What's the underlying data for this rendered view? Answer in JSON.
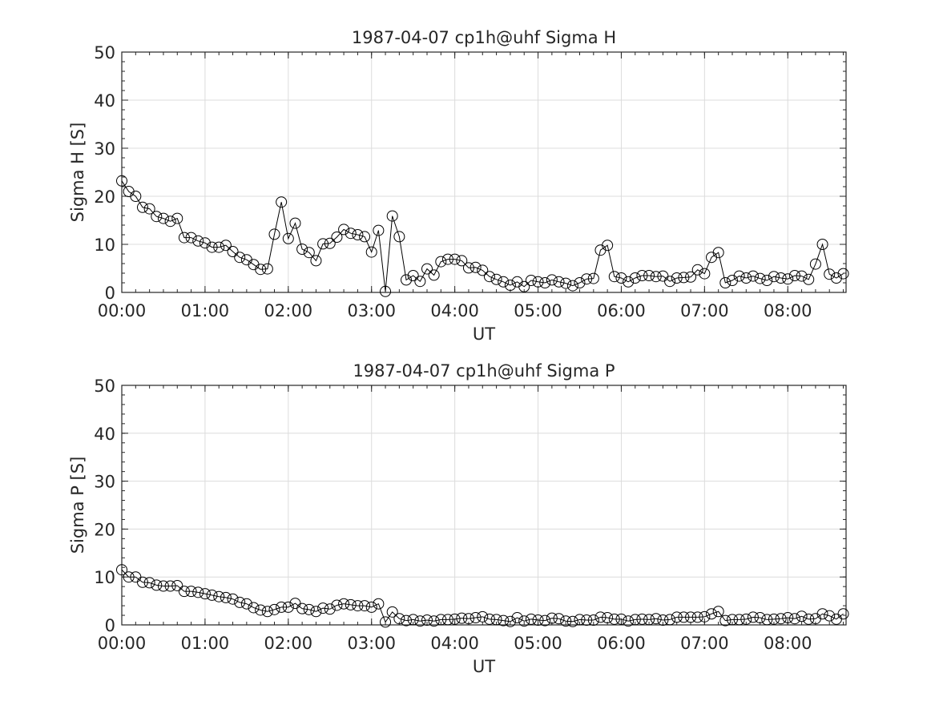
{
  "chart_data": [
    {
      "type": "line",
      "title": "1987-04-07  cp1h@uhf Sigma H",
      "xlabel": "UT",
      "ylabel": "Sigma H [S]",
      "xlim": [
        "00:00",
        "08:42"
      ],
      "ylim": [
        0,
        50
      ],
      "grid": true,
      "marker": "open-circle",
      "line_color": "#000000",
      "x_ticks": [
        "00:00",
        "01:00",
        "02:00",
        "03:00",
        "04:00",
        "05:00",
        "06:00",
        "07:00",
        "08:00"
      ],
      "y_ticks": [
        "0",
        "10",
        "20",
        "30",
        "40",
        "50"
      ],
      "x_step_minutes": 5,
      "x_start": "00:00",
      "values": [
        23.2,
        21.0,
        20.0,
        17.7,
        17.4,
        15.8,
        15.4,
        14.8,
        15.4,
        11.4,
        11.4,
        10.7,
        10.3,
        9.4,
        9.4,
        9.8,
        8.5,
        7.3,
        6.8,
        5.8,
        4.8,
        4.9,
        12.1,
        18.8,
        11.2,
        14.4,
        9.0,
        8.3,
        6.6,
        10.1,
        10.2,
        11.5,
        13.1,
        12.3,
        12.0,
        11.6,
        8.4,
        12.9,
        0.2,
        15.9,
        11.6,
        2.6,
        3.5,
        2.3,
        4.9,
        3.6,
        6.4,
        6.9,
        6.9,
        6.6,
        5.1,
        5.2,
        4.6,
        3.3,
        2.7,
        2.2,
        1.5,
        2.2,
        1.2,
        2.5,
        2.2,
        2.0,
        2.6,
        2.2,
        1.9,
        1.4,
        2.0,
        2.8,
        2.9,
        8.8,
        9.8,
        3.3,
        3.0,
        2.2,
        3.0,
        3.5,
        3.5,
        3.3,
        3.4,
        2.3,
        3.0,
        3.1,
        3.2,
        4.7,
        3.9,
        7.3,
        8.3,
        2.0,
        2.5,
        3.4,
        3.0,
        3.4,
        2.9,
        2.5,
        3.3,
        3.0,
        2.8,
        3.5,
        3.4,
        2.7,
        5.9,
        10.0,
        3.8,
        3.0,
        3.9
      ]
    },
    {
      "type": "line",
      "title": "1987-04-07  cp1h@uhf Sigma P",
      "xlabel": "UT",
      "ylabel": "Sigma P [S]",
      "xlim": [
        "00:00",
        "08:42"
      ],
      "ylim": [
        0,
        50
      ],
      "grid": true,
      "marker": "open-circle",
      "line_color": "#000000",
      "x_ticks": [
        "00:00",
        "01:00",
        "02:00",
        "03:00",
        "04:00",
        "05:00",
        "06:00",
        "07:00",
        "08:00"
      ],
      "y_ticks": [
        "0",
        "10",
        "20",
        "30",
        "40",
        "50"
      ],
      "x_step_minutes": 5,
      "x_start": "00:00",
      "values": [
        11.5,
        10.0,
        10.0,
        8.9,
        8.8,
        8.3,
        8.1,
        8.1,
        8.2,
        7.0,
        7.0,
        6.8,
        6.5,
        6.2,
        5.9,
        5.7,
        5.4,
        4.7,
        4.4,
        3.6,
        3.1,
        2.8,
        3.2,
        3.7,
        3.7,
        4.5,
        3.4,
        3.2,
        2.8,
        3.5,
        3.3,
        4.1,
        4.4,
        4.2,
        4.0,
        4.0,
        3.7,
        4.4,
        0.6,
        2.7,
        1.3,
        0.9,
        1.1,
        0.8,
        1.0,
        0.8,
        1.1,
        1.1,
        1.2,
        1.4,
        1.3,
        1.5,
        1.7,
        1.2,
        1.1,
        0.9,
        0.7,
        1.5,
        0.8,
        1.2,
        1.0,
        0.9,
        1.4,
        1.3,
        0.8,
        0.7,
        1.1,
        1.0,
        1.0,
        1.6,
        1.5,
        1.2,
        1.2,
        0.8,
        1.1,
        1.2,
        1.1,
        1.3,
        1.0,
        1.1,
        1.6,
        1.6,
        1.6,
        1.6,
        1.7,
        2.3,
        2.8,
        0.9,
        1.1,
        1.1,
        1.2,
        1.6,
        1.5,
        1.1,
        1.2,
        1.3,
        1.5,
        1.3,
        1.8,
        1.2,
        1.3,
        2.3,
        1.9,
        1.2,
        2.3
      ]
    }
  ]
}
